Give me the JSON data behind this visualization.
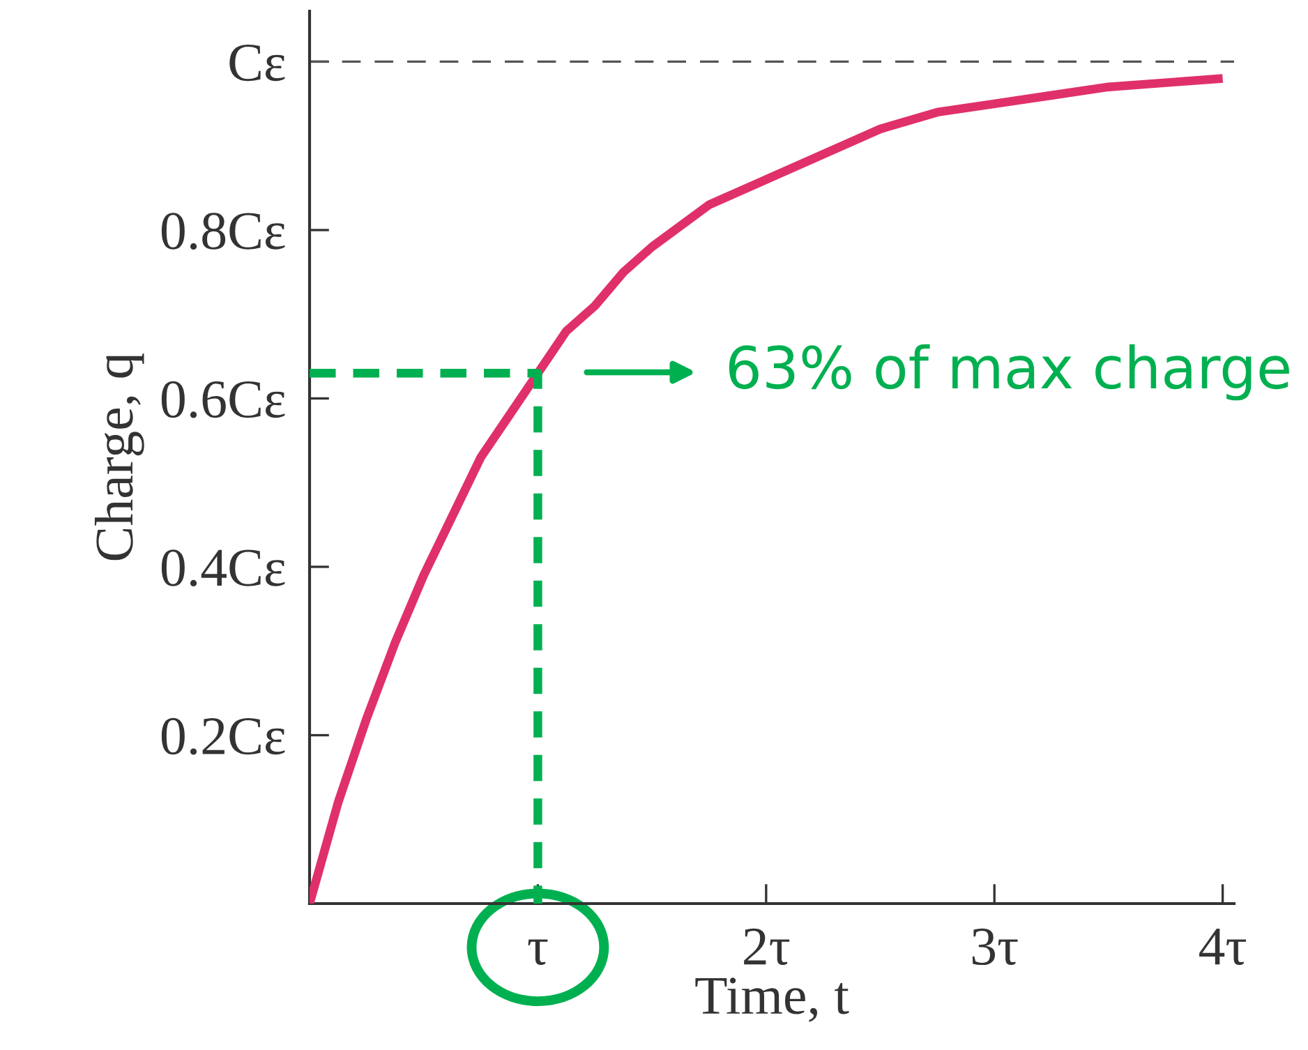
{
  "chart_data": {
    "type": "line",
    "xlabel": "Time, t",
    "ylabel": "Charge, q",
    "xlim": [
      0,
      4.05
    ],
    "ylim": [
      0,
      1.06
    ],
    "xticks": [
      {
        "value": 1,
        "label": "τ"
      },
      {
        "value": 2,
        "label": "2τ"
      },
      {
        "value": 3,
        "label": "3τ"
      },
      {
        "value": 4,
        "label": "4τ"
      }
    ],
    "yticks": [
      {
        "value": 0.2,
        "label": "0.2Cε"
      },
      {
        "value": 0.4,
        "label": "0.4Cε"
      },
      {
        "value": 0.6,
        "label": "0.6Cε"
      },
      {
        "value": 0.8,
        "label": "0.8Cε"
      },
      {
        "value": 1,
        "label": "Cε"
      }
    ],
    "grid": false,
    "legend": false,
    "marker": "none",
    "series": [
      {
        "color": "#e0306a",
        "line_style": "solid",
        "x": [
          0,
          0.125,
          0.25,
          0.375,
          0.5,
          0.625,
          0.75,
          0.875,
          1,
          1.125,
          1.25,
          1.375,
          1.5,
          1.75,
          2,
          2.25,
          2.5,
          2.75,
          3,
          3.25,
          3.5,
          3.75,
          4
        ],
        "values": [
          0,
          0.12,
          0.22,
          0.31,
          0.39,
          0.46,
          0.53,
          0.58,
          0.63,
          0.68,
          0.71,
          0.75,
          0.78,
          0.83,
          0.86,
          0.89,
          0.92,
          0.94,
          0.95,
          0.96,
          0.97,
          0.975,
          0.98
        ]
      },
      {
        "color": "#00b050",
        "line_style": "dashed",
        "x": [
          0,
          1,
          1
        ],
        "values": [
          0.63,
          0.63,
          0
        ]
      }
    ],
    "ref_lines": [
      {
        "axis": "y",
        "value": 1,
        "color": "#555555",
        "line_style": "dashed"
      }
    ],
    "annotations": [
      "63% of max charge"
    ]
  }
}
